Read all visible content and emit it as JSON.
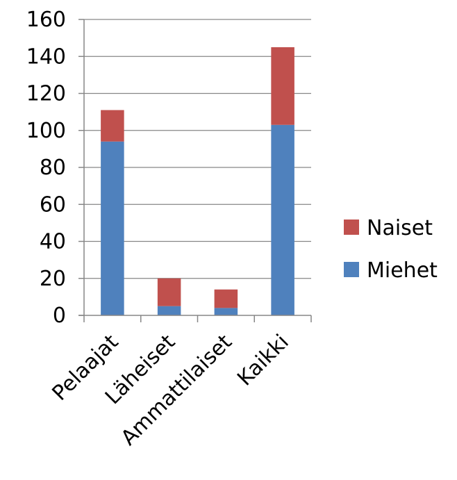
{
  "chart_data": {
    "type": "bar",
    "stacked": true,
    "categories": [
      "Pelaajat",
      "Läheiset",
      "Ammattilaiset",
      "Kaikki"
    ],
    "series": [
      {
        "name": "Miehet",
        "color": "#4F81BD",
        "values": [
          94,
          5,
          4,
          103
        ]
      },
      {
        "name": "Naiset",
        "color": "#C0504D",
        "values": [
          17,
          15,
          10,
          42
        ]
      }
    ],
    "ylim": [
      0,
      160
    ],
    "yticks": [
      0,
      20,
      40,
      60,
      80,
      100,
      120,
      140,
      160
    ],
    "grid": true,
    "legend_position": "right",
    "legend_order": [
      "Naiset",
      "Miehet"
    ]
  }
}
